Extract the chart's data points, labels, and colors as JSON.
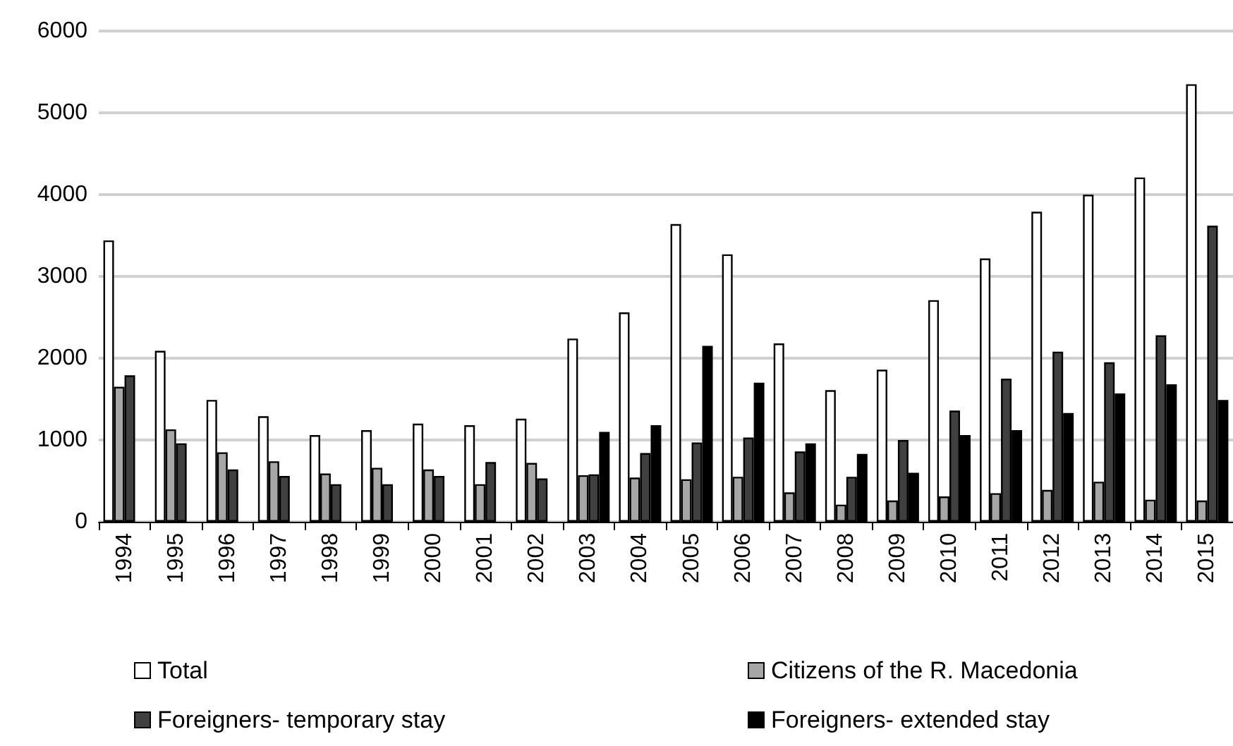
{
  "chart_data": {
    "type": "bar",
    "categories": [
      "1994",
      "1995",
      "1996",
      "1997",
      "1998",
      "1999",
      "2000",
      "2001",
      "2002",
      "2003",
      "2004",
      "2005",
      "2006",
      "2007",
      "2008",
      "2009",
      "2010",
      "2011",
      "2012",
      "2013",
      "2014",
      "2015"
    ],
    "series": [
      {
        "name": "Total",
        "color": "#ffffff",
        "values": [
          3440,
          2090,
          1490,
          1290,
          1060,
          1120,
          1200,
          1180,
          1260,
          2240,
          2560,
          3640,
          3270,
          2180,
          1610,
          1860,
          2710,
          3220,
          3790,
          4000,
          4210,
          5350
        ]
      },
      {
        "name": "Citizens of the R. Macedonia",
        "color": "#a6a6a6",
        "values": [
          1650,
          1130,
          850,
          740,
          590,
          660,
          640,
          460,
          720,
          570,
          540,
          520,
          550,
          360,
          210,
          260,
          310,
          350,
          390,
          490,
          270,
          260
        ]
      },
      {
        "name": "Foreigners- temporary stay",
        "color": "#404040",
        "values": [
          1790,
          960,
          640,
          560,
          460,
          460,
          560,
          730,
          530,
          580,
          840,
          970,
          1030,
          860,
          550,
          1000,
          1360,
          1750,
          2080,
          1950,
          2280,
          3620
        ]
      },
      {
        "name": "Foreigners- extended stay",
        "color": "#000000",
        "values": [
          null,
          null,
          null,
          null,
          null,
          null,
          null,
          null,
          null,
          1100,
          1180,
          2150,
          1700,
          960,
          830,
          600,
          1060,
          1120,
          1330,
          1570,
          1680,
          1490
        ]
      }
    ],
    "ylim": [
      0,
      6000
    ],
    "yticks": [
      0,
      1000,
      2000,
      3000,
      4000,
      5000,
      6000
    ],
    "grid": "y",
    "legend": "bottom"
  }
}
